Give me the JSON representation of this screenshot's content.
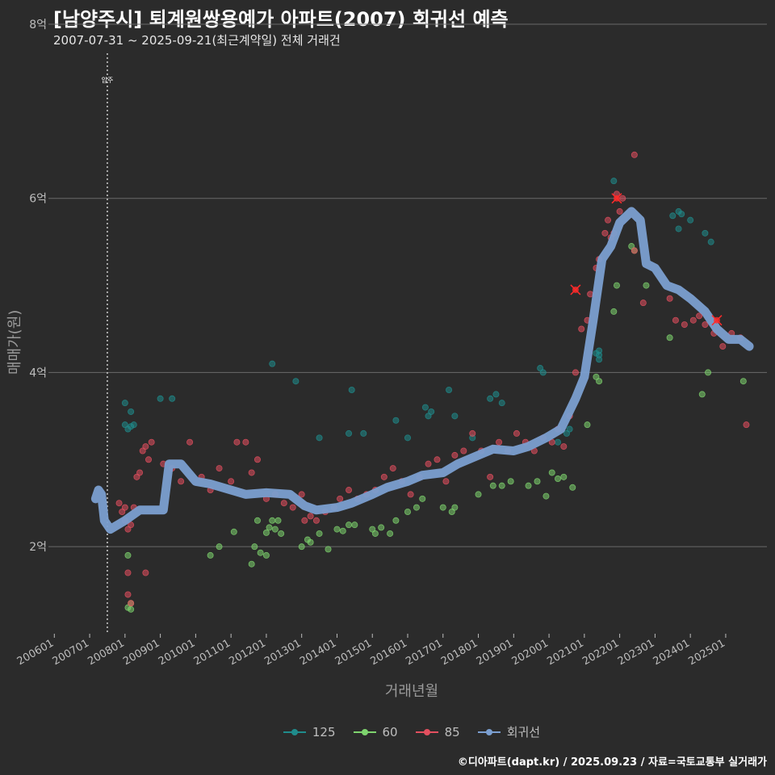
{
  "header": {
    "title": "[남양주시] 퇴계원쌍용예가 아파트(2007) 회귀선 예측",
    "subtitle": "2007-07-31 ~ 2025-09-21(최근계약일) 전체 거래건"
  },
  "caption": "©디아파트(dapt.kr) / 2025.09.23 / 자료=국토교통부 실거래가",
  "chart_data": {
    "type": "scatter",
    "title": "[남양주시] 퇴계원쌍용예가 아파트(2007) 회귀선 예측",
    "xlabel": "거래년월",
    "ylabel": "매매가(원)",
    "y_unit": "억",
    "ylim": [
      1.0,
      8.0
    ],
    "xlim": [
      "2005-11",
      "2026-03"
    ],
    "y_ticks": [
      2,
      4,
      6,
      8
    ],
    "y_tick_labels": [
      "2억",
      "4억",
      "6억",
      "8억"
    ],
    "x_ticks": [
      "2006-01",
      "2007-01",
      "2008-01",
      "2009-01",
      "2010-01",
      "2011-01",
      "2012-01",
      "2013-01",
      "2014-01",
      "2015-01",
      "2016-01",
      "2017-01",
      "2018-01",
      "2019-01",
      "2020-01",
      "2021-01",
      "2022-01",
      "2023-01",
      "2024-01",
      "2025-01"
    ],
    "x_tick_labels": [
      "200601",
      "200701",
      "200801",
      "200901",
      "201001",
      "201101",
      "201201",
      "201301",
      "201401",
      "201501",
      "201601",
      "201701",
      "201801",
      "201901",
      "202001",
      "202101",
      "202201",
      "202301",
      "202401",
      "202501"
    ],
    "grid": true,
    "legend_position": "bottom",
    "reference_line": {
      "x": "2007-07",
      "label": "입주"
    },
    "colors": {
      "125": "#1f8c8c",
      "60": "#7ed46e",
      "85": "#e34f5f",
      "회귀선": "#7b9fd0",
      "highlight": "#ff2a2a"
    },
    "series": [
      {
        "name": "125",
        "kind": "scatter",
        "points": [
          [
            "2008-01",
            3.65
          ],
          [
            "2008-01",
            3.4
          ],
          [
            "2008-02",
            3.35
          ],
          [
            "2008-03",
            3.38
          ],
          [
            "2008-03",
            3.55
          ],
          [
            "2008-04",
            3.4
          ],
          [
            "2009-01",
            3.7
          ],
          [
            "2009-05",
            3.7
          ],
          [
            "2012-03",
            4.1
          ],
          [
            "2012-11",
            3.9
          ],
          [
            "2013-07",
            3.25
          ],
          [
            "2014-05",
            3.3
          ],
          [
            "2014-06",
            3.8
          ],
          [
            "2014-10",
            3.3
          ],
          [
            "2015-09",
            3.45
          ],
          [
            "2016-01",
            3.25
          ],
          [
            "2016-07",
            3.6
          ],
          [
            "2016-08",
            3.5
          ],
          [
            "2016-09",
            3.55
          ],
          [
            "2017-03",
            3.8
          ],
          [
            "2017-05",
            3.5
          ],
          [
            "2017-11",
            3.25
          ],
          [
            "2018-05",
            3.7
          ],
          [
            "2018-07",
            3.75
          ],
          [
            "2018-09",
            3.65
          ],
          [
            "2019-10",
            4.05
          ],
          [
            "2019-11",
            4.0
          ],
          [
            "2020-04",
            3.2
          ],
          [
            "2020-07",
            3.3
          ],
          [
            "2020-08",
            3.35
          ],
          [
            "2021-05",
            4.22
          ],
          [
            "2021-06",
            4.25
          ],
          [
            "2021-06",
            4.15
          ],
          [
            "2021-06",
            4.2
          ],
          [
            "2021-11",
            6.2
          ],
          [
            "2023-07",
            5.8
          ],
          [
            "2023-09",
            5.85
          ],
          [
            "2023-09",
            5.65
          ],
          [
            "2023-10",
            5.82
          ],
          [
            "2024-01",
            5.75
          ],
          [
            "2024-06",
            5.6
          ],
          [
            "2024-08",
            5.5
          ]
        ]
      },
      {
        "name": "60",
        "kind": "scatter",
        "points": [
          [
            "2008-02",
            1.9
          ],
          [
            "2008-02",
            1.3
          ],
          [
            "2008-03",
            1.28
          ],
          [
            "2008-03",
            1.35
          ],
          [
            "2010-06",
            1.9
          ],
          [
            "2010-09",
            2.0
          ],
          [
            "2011-02",
            2.17
          ],
          [
            "2011-08",
            1.8
          ],
          [
            "2011-09",
            2.0
          ],
          [
            "2011-10",
            2.3
          ],
          [
            "2011-11",
            1.93
          ],
          [
            "2012-01",
            1.9
          ],
          [
            "2012-01",
            2.16
          ],
          [
            "2012-02",
            2.22
          ],
          [
            "2012-03",
            2.3
          ],
          [
            "2012-04",
            2.2
          ],
          [
            "2012-05",
            2.3
          ],
          [
            "2012-06",
            2.15
          ],
          [
            "2013-01",
            2.0
          ],
          [
            "2013-03",
            2.08
          ],
          [
            "2013-04",
            2.05
          ],
          [
            "2013-07",
            2.15
          ],
          [
            "2013-10",
            1.97
          ],
          [
            "2014-01",
            2.2
          ],
          [
            "2014-03",
            2.18
          ],
          [
            "2014-05",
            2.25
          ],
          [
            "2014-07",
            2.25
          ],
          [
            "2015-01",
            2.2
          ],
          [
            "2015-02",
            2.15
          ],
          [
            "2015-04",
            2.22
          ],
          [
            "2015-07",
            2.15
          ],
          [
            "2015-09",
            2.3
          ],
          [
            "2016-01",
            2.4
          ],
          [
            "2016-04",
            2.45
          ],
          [
            "2016-06",
            2.55
          ],
          [
            "2017-01",
            2.45
          ],
          [
            "2017-04",
            2.4
          ],
          [
            "2017-05",
            2.45
          ],
          [
            "2018-01",
            2.6
          ],
          [
            "2018-06",
            2.7
          ],
          [
            "2018-09",
            2.7
          ],
          [
            "2018-12",
            2.75
          ],
          [
            "2019-06",
            2.7
          ],
          [
            "2019-09",
            2.75
          ],
          [
            "2019-12",
            2.58
          ],
          [
            "2020-02",
            2.85
          ],
          [
            "2020-04",
            2.78
          ],
          [
            "2020-06",
            2.8
          ],
          [
            "2020-09",
            2.68
          ],
          [
            "2021-02",
            3.4
          ],
          [
            "2021-05",
            3.95
          ],
          [
            "2021-06",
            3.9
          ],
          [
            "2021-11",
            4.7
          ],
          [
            "2021-12",
            5.0
          ],
          [
            "2022-05",
            5.45
          ],
          [
            "2022-06",
            5.4
          ],
          [
            "2022-10",
            5.0
          ],
          [
            "2023-06",
            4.4
          ],
          [
            "2024-05",
            3.75
          ],
          [
            "2024-07",
            4.0
          ],
          [
            "2025-07",
            3.9
          ]
        ]
      },
      {
        "name": "85",
        "kind": "scatter",
        "points": [
          [
            "2007-11",
            2.5
          ],
          [
            "2007-12",
            2.4
          ],
          [
            "2008-01",
            2.3
          ],
          [
            "2008-01",
            2.45
          ],
          [
            "2008-02",
            2.2
          ],
          [
            "2008-02",
            1.7
          ],
          [
            "2008-02",
            1.45
          ],
          [
            "2008-03",
            1.35
          ],
          [
            "2008-03",
            2.25
          ],
          [
            "2008-04",
            2.45
          ],
          [
            "2008-05",
            2.8
          ],
          [
            "2008-06",
            2.85
          ],
          [
            "2008-07",
            3.1
          ],
          [
            "2008-08",
            3.15
          ],
          [
            "2008-08",
            1.7
          ],
          [
            "2008-09",
            3.0
          ],
          [
            "2008-10",
            3.2
          ],
          [
            "2009-02",
            2.95
          ],
          [
            "2009-05",
            2.9
          ],
          [
            "2009-08",
            2.75
          ],
          [
            "2009-11",
            3.2
          ],
          [
            "2010-03",
            2.8
          ],
          [
            "2010-06",
            2.65
          ],
          [
            "2010-09",
            2.9
          ],
          [
            "2011-01",
            2.75
          ],
          [
            "2011-03",
            3.2
          ],
          [
            "2011-06",
            3.2
          ],
          [
            "2011-08",
            2.85
          ],
          [
            "2011-10",
            3.0
          ],
          [
            "2012-01",
            2.55
          ],
          [
            "2012-04",
            2.6
          ],
          [
            "2012-07",
            2.5
          ],
          [
            "2012-10",
            2.45
          ],
          [
            "2013-01",
            2.6
          ],
          [
            "2013-02",
            2.3
          ],
          [
            "2013-04",
            2.35
          ],
          [
            "2013-06",
            2.3
          ],
          [
            "2013-09",
            2.4
          ],
          [
            "2013-12",
            2.45
          ],
          [
            "2014-02",
            2.55
          ],
          [
            "2014-05",
            2.65
          ],
          [
            "2014-08",
            2.55
          ],
          [
            "2014-11",
            2.6
          ],
          [
            "2015-02",
            2.65
          ],
          [
            "2015-05",
            2.8
          ],
          [
            "2015-08",
            2.9
          ],
          [
            "2015-11",
            2.75
          ],
          [
            "2016-02",
            2.6
          ],
          [
            "2016-05",
            2.8
          ],
          [
            "2016-08",
            2.95
          ],
          [
            "2016-11",
            3.0
          ],
          [
            "2017-02",
            2.75
          ],
          [
            "2017-05",
            3.05
          ],
          [
            "2017-08",
            3.1
          ],
          [
            "2017-11",
            3.3
          ],
          [
            "2018-02",
            3.1
          ],
          [
            "2018-05",
            2.8
          ],
          [
            "2018-08",
            3.2
          ],
          [
            "2018-11",
            3.1
          ],
          [
            "2019-02",
            3.3
          ],
          [
            "2019-05",
            3.2
          ],
          [
            "2019-08",
            3.1
          ],
          [
            "2019-11",
            3.25
          ],
          [
            "2020-02",
            3.2
          ],
          [
            "2020-04",
            3.35
          ],
          [
            "2020-06",
            3.15
          ],
          [
            "2020-08",
            3.5
          ],
          [
            "2020-10",
            4.0
          ],
          [
            "2020-12",
            4.5
          ],
          [
            "2021-02",
            4.6
          ],
          [
            "2021-03",
            4.9
          ],
          [
            "2021-05",
            5.2
          ],
          [
            "2021-06",
            5.3
          ],
          [
            "2021-08",
            5.6
          ],
          [
            "2021-09",
            5.75
          ],
          [
            "2021-10",
            5.55
          ],
          [
            "2021-11",
            5.6
          ],
          [
            "2021-12",
            6.05
          ],
          [
            "2022-01",
            5.85
          ],
          [
            "2022-02",
            6.0
          ],
          [
            "2022-06",
            5.4
          ],
          [
            "2022-09",
            4.8
          ],
          [
            "2023-06",
            4.85
          ],
          [
            "2023-08",
            4.6
          ],
          [
            "2023-11",
            4.55
          ],
          [
            "2024-02",
            4.6
          ],
          [
            "2024-04",
            4.65
          ],
          [
            "2024-06",
            4.55
          ],
          [
            "2024-09",
            4.45
          ],
          [
            "2024-12",
            4.3
          ],
          [
            "2025-03",
            4.45
          ],
          [
            "2025-06",
            4.4
          ],
          [
            "2025-08",
            3.4
          ],
          [
            "2022-06",
            6.5
          ]
        ]
      },
      {
        "name": "highlight",
        "kind": "marker",
        "points": [
          [
            "2020-10",
            4.95
          ],
          [
            "2021-12",
            6.0
          ],
          [
            "2024-10",
            4.6
          ]
        ]
      },
      {
        "name": "회귀선",
        "kind": "line",
        "points": [
          [
            "2007-03",
            2.55
          ],
          [
            "2007-04",
            2.65
          ],
          [
            "2007-05",
            2.6
          ],
          [
            "2007-06",
            2.3
          ],
          [
            "2007-08",
            2.2
          ],
          [
            "2008-01",
            2.3
          ],
          [
            "2008-06",
            2.42
          ],
          [
            "2009-01",
            2.42
          ],
          [
            "2009-02",
            2.42
          ],
          [
            "2009-04",
            2.95
          ],
          [
            "2009-08",
            2.95
          ],
          [
            "2010-01",
            2.75
          ],
          [
            "2010-06",
            2.72
          ],
          [
            "2011-01",
            2.65
          ],
          [
            "2011-06",
            2.6
          ],
          [
            "2012-01",
            2.62
          ],
          [
            "2012-09",
            2.6
          ],
          [
            "2013-02",
            2.47
          ],
          [
            "2013-06",
            2.42
          ],
          [
            "2014-01",
            2.45
          ],
          [
            "2014-06",
            2.5
          ],
          [
            "2015-01",
            2.6
          ],
          [
            "2015-06",
            2.68
          ],
          [
            "2016-01",
            2.75
          ],
          [
            "2016-06",
            2.82
          ],
          [
            "2017-01",
            2.85
          ],
          [
            "2017-06",
            2.95
          ],
          [
            "2018-01",
            3.05
          ],
          [
            "2018-06",
            3.12
          ],
          [
            "2019-01",
            3.1
          ],
          [
            "2019-06",
            3.15
          ],
          [
            "2019-12",
            3.25
          ],
          [
            "2020-05",
            3.35
          ],
          [
            "2020-10",
            3.7
          ],
          [
            "2021-01",
            3.95
          ],
          [
            "2021-04",
            4.6
          ],
          [
            "2021-07",
            5.3
          ],
          [
            "2021-10",
            5.45
          ],
          [
            "2022-01",
            5.72
          ],
          [
            "2022-05",
            5.85
          ],
          [
            "2022-08",
            5.75
          ],
          [
            "2022-10",
            5.25
          ],
          [
            "2023-01",
            5.2
          ],
          [
            "2023-05",
            5.0
          ],
          [
            "2023-09",
            4.95
          ],
          [
            "2024-01",
            4.85
          ],
          [
            "2024-06",
            4.7
          ],
          [
            "2024-10",
            4.5
          ],
          [
            "2025-02",
            4.38
          ],
          [
            "2025-06",
            4.38
          ],
          [
            "2025-09",
            4.3
          ]
        ]
      }
    ],
    "legend": [
      {
        "label": "125",
        "color": "#1f8c8c"
      },
      {
        "label": "60",
        "color": "#7ed46e"
      },
      {
        "label": "85",
        "color": "#e34f5f"
      },
      {
        "label": "회귀선",
        "color": "#7b9fd0"
      }
    ]
  }
}
